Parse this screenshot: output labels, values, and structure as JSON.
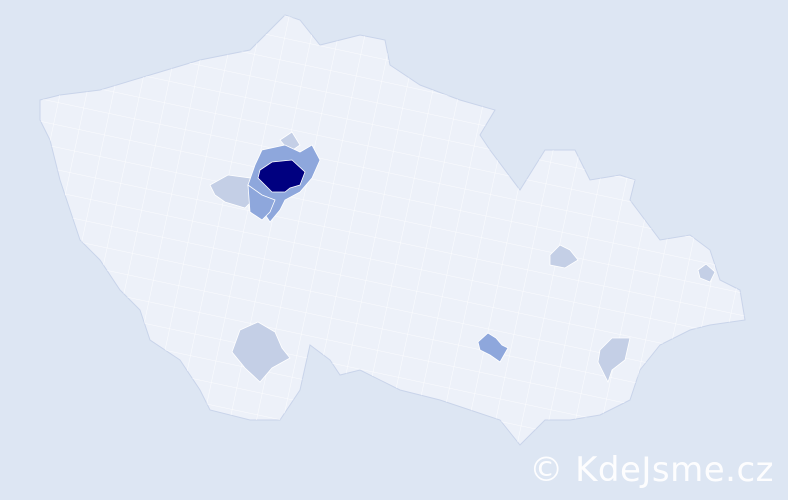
{
  "map": {
    "colors": {
      "background": "#dde6f3",
      "region_default": "#edf1f9",
      "region_border": "#ffffff",
      "level_high": "#000080",
      "level_medium": "#8ea7dc",
      "level_low": "#c4cfe6"
    },
    "highlighted_regions": [
      {
        "id": "praha",
        "level": "high"
      },
      {
        "id": "praha-vychod",
        "level": "medium"
      },
      {
        "id": "praha-zapad",
        "level": "medium"
      },
      {
        "id": "kladno",
        "level": "low"
      },
      {
        "id": "mlada-boleslav-edge",
        "level": "low"
      },
      {
        "id": "ceske-budejovice",
        "level": "low"
      },
      {
        "id": "brno-mesto",
        "level": "medium"
      },
      {
        "id": "prostejov",
        "level": "low"
      },
      {
        "id": "uherske-hradiste",
        "level": "low"
      },
      {
        "id": "frydek-mistek",
        "level": "low"
      }
    ]
  },
  "watermark": "© KdeJsme.cz"
}
